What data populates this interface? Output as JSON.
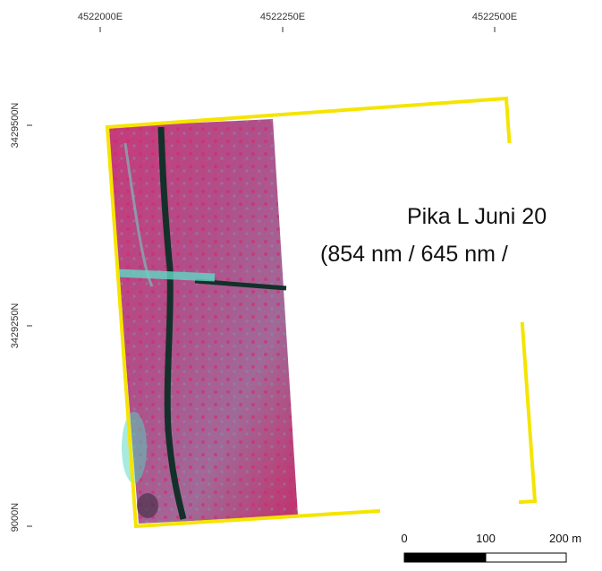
{
  "map": {
    "x_labels": [
      "4522000E",
      "4522250E",
      "4522500E"
    ],
    "y_labels": [
      "3429500N",
      "3429250N",
      "9000N"
    ],
    "title_lines": [
      "Pika L Juni 20",
      "(854 nm / 645 nm /"
    ],
    "scale_bar": [
      "0",
      "100",
      "200 m"
    ]
  }
}
